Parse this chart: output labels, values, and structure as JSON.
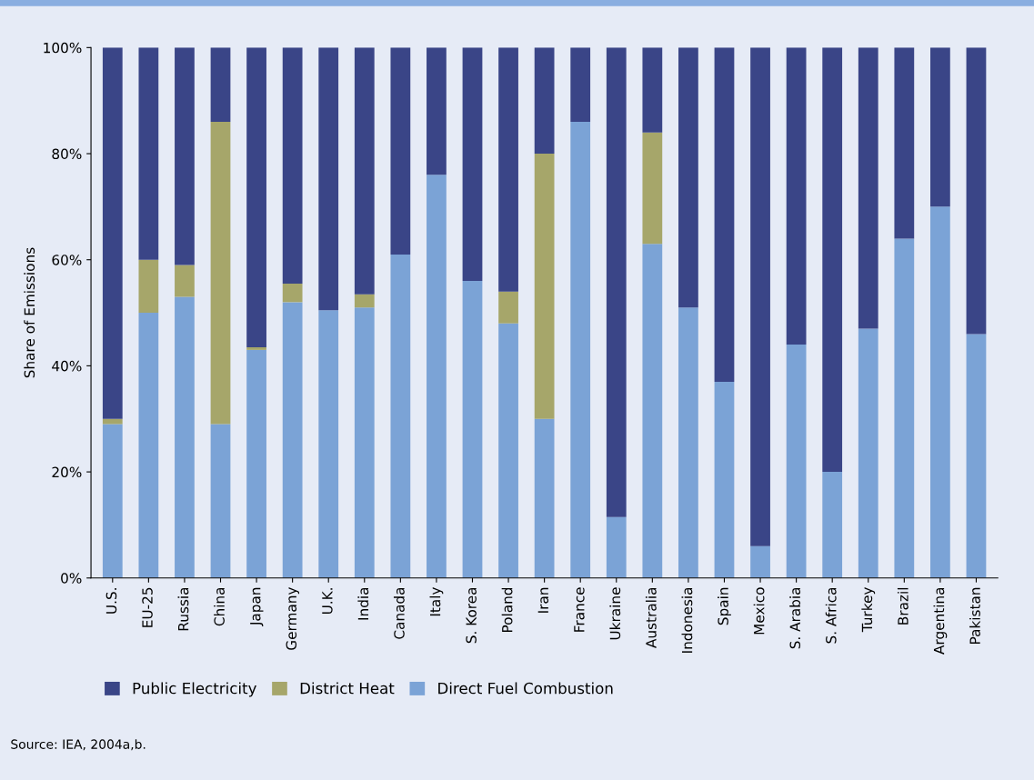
{
  "chart_data": {
    "type": "bar",
    "stacked": true,
    "ylabel": "Share of Emissions",
    "categories": [
      "U.S.",
      "EU-25",
      "Russia",
      "China",
      "Japan",
      "Germany",
      "U.K.",
      "India",
      "Canada",
      "Italy",
      "S. Korea",
      "Poland",
      "Iran",
      "France",
      "Ukraine",
      "Australia",
      "Indonesia",
      "Spain",
      "Mexico",
      "S. Arabia",
      "S. Africa",
      "Turkey",
      "Brazil",
      "Argentina",
      "Pakistan"
    ],
    "series": [
      {
        "name": "Direct Fuel Combustion",
        "color": "#7ba3d6",
        "values": [
          29,
          50,
          53,
          29,
          43,
          52,
          50.5,
          51,
          61,
          76,
          56,
          48,
          30,
          86,
          11.5,
          63,
          51,
          37,
          6,
          44,
          20,
          47,
          64,
          70,
          46
        ]
      },
      {
        "name": "District Heat",
        "color": "#a6a66a",
        "values": [
          1,
          10,
          6,
          57,
          0.5,
          3.5,
          0,
          2.5,
          0,
          0,
          0,
          6,
          50,
          0,
          0,
          21,
          0,
          0,
          0,
          0,
          0,
          0,
          0,
          0,
          0
        ]
      },
      {
        "name": "Public Electricity",
        "color": "#3a4587",
        "values": [
          70,
          40,
          41,
          14,
          56.5,
          44.5,
          49.5,
          46.5,
          39,
          24,
          44,
          46,
          20,
          14,
          88.5,
          16,
          49,
          63,
          94,
          56,
          80,
          53,
          36,
          30,
          54
        ]
      }
    ],
    "ylim": [
      0,
      100
    ],
    "yticks": [
      {
        "value": 0,
        "label": "0%"
      },
      {
        "value": 20,
        "label": "20%"
      },
      {
        "value": 40,
        "label": "40%"
      },
      {
        "value": 60,
        "label": "60%"
      },
      {
        "value": 80,
        "label": "80%"
      },
      {
        "value": 100,
        "label": "100%"
      }
    ],
    "grid": false,
    "legend": "bottom",
    "annotations": [
      "Source: IEA, 2004a,b."
    ]
  }
}
